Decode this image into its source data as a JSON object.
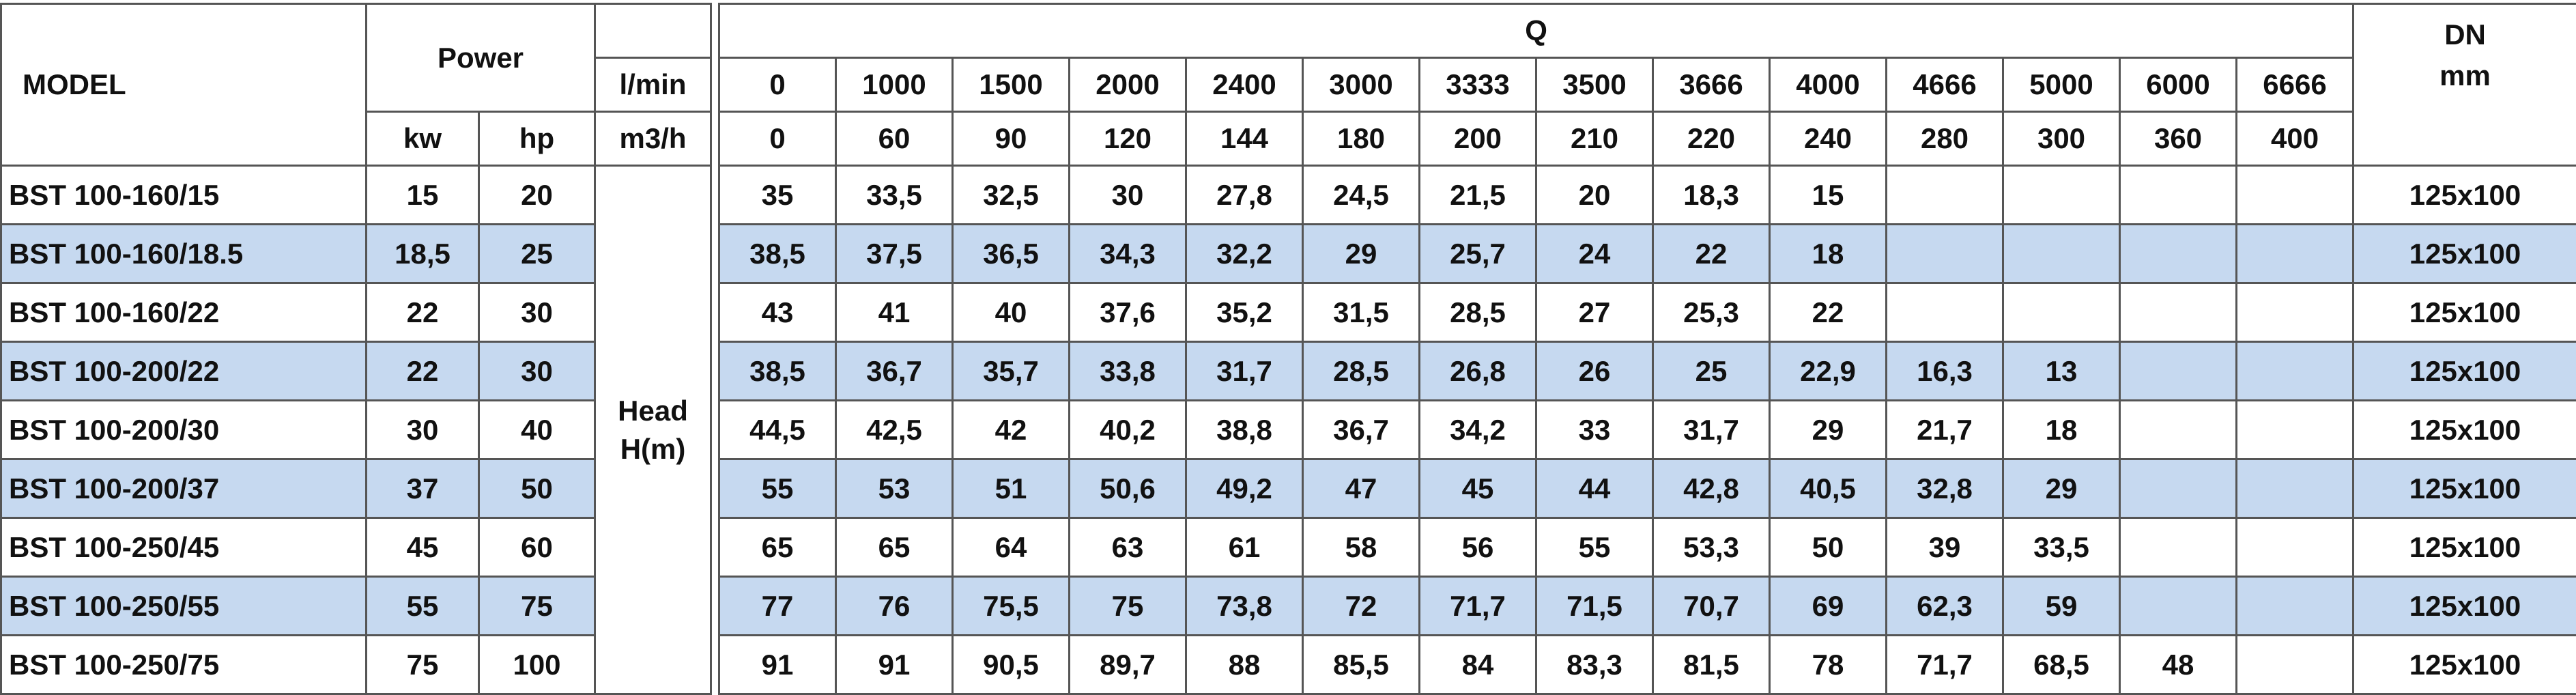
{
  "table": {
    "headers": {
      "model": "MODEL",
      "power": "Power",
      "kw": "kw",
      "hp": "hp",
      "flow_lmin": "l/min",
      "flow_m3h": "m3/h",
      "q": "Q",
      "dn": "DN",
      "dn_unit": "mm",
      "head": "Head",
      "head_unit": "H(m)"
    },
    "lmin": [
      0,
      1000,
      1500,
      2000,
      2400,
      3000,
      3333,
      3500,
      3666,
      4000,
      4666,
      5000,
      6000,
      6666
    ],
    "m3h": [
      0,
      60,
      90,
      120,
      144,
      180,
      200,
      210,
      220,
      240,
      280,
      300,
      360,
      400
    ],
    "rows": [
      {
        "model": "BST 100-160/15",
        "kw": 15,
        "hp": 20,
        "head": [
          35,
          "33,5",
          "32,5",
          30,
          "27,8",
          "24,5",
          "21,5",
          20,
          "18,3",
          15
        ],
        "dn": "125x100"
      },
      {
        "model": "BST 100-160/18.5",
        "kw": "18,5",
        "hp": 25,
        "head": [
          "38,5",
          "37,5",
          "36,5",
          "34,3",
          "32,2",
          29,
          "25,7",
          24,
          22,
          18
        ],
        "dn": "125x100"
      },
      {
        "model": "BST 100-160/22",
        "kw": 22,
        "hp": 30,
        "head": [
          43,
          41,
          40,
          "37,6",
          "35,2",
          "31,5",
          "28,5",
          27,
          "25,3",
          22
        ],
        "dn": "125x100"
      },
      {
        "model": "BST 100-200/22",
        "kw": 22,
        "hp": 30,
        "head": [
          "38,5",
          "36,7",
          "35,7",
          "33,8",
          "31,7",
          "28,5",
          "26,8",
          26,
          25,
          "22,9",
          "16,3",
          13
        ],
        "dn": "125x100"
      },
      {
        "model": "BST 100-200/30",
        "kw": 30,
        "hp": 40,
        "head": [
          "44,5",
          "42,5",
          42,
          "40,2",
          "38,8",
          "36,7",
          "34,2",
          33,
          "31,7",
          29,
          "21,7",
          18
        ],
        "dn": "125x100"
      },
      {
        "model": "BST 100-200/37",
        "kw": 37,
        "hp": 50,
        "head": [
          55,
          53,
          51,
          "50,6",
          "49,2",
          47,
          45,
          44,
          "42,8",
          "40,5",
          "32,8",
          29
        ],
        "dn": "125x100"
      },
      {
        "model": "BST 100-250/45",
        "kw": 45,
        "hp": 60,
        "head": [
          65,
          65,
          64,
          63,
          61,
          58,
          56,
          55,
          "53,3",
          50,
          39,
          "33,5"
        ],
        "dn": "125x100"
      },
      {
        "model": "BST 100-250/55",
        "kw": 55,
        "hp": 75,
        "head": [
          77,
          76,
          "75,5",
          75,
          "73,8",
          72,
          "71,7",
          "71,5",
          "70,7",
          69,
          "62,3",
          59
        ],
        "dn": "125x100"
      },
      {
        "model": "BST 100-250/75",
        "kw": 75,
        "hp": 100,
        "head": [
          91,
          91,
          "90,5",
          "89,7",
          88,
          "85,5",
          84,
          "83,3",
          "81,5",
          78,
          "71,7",
          "68,5",
          48
        ],
        "dn": "125x100"
      }
    ]
  }
}
